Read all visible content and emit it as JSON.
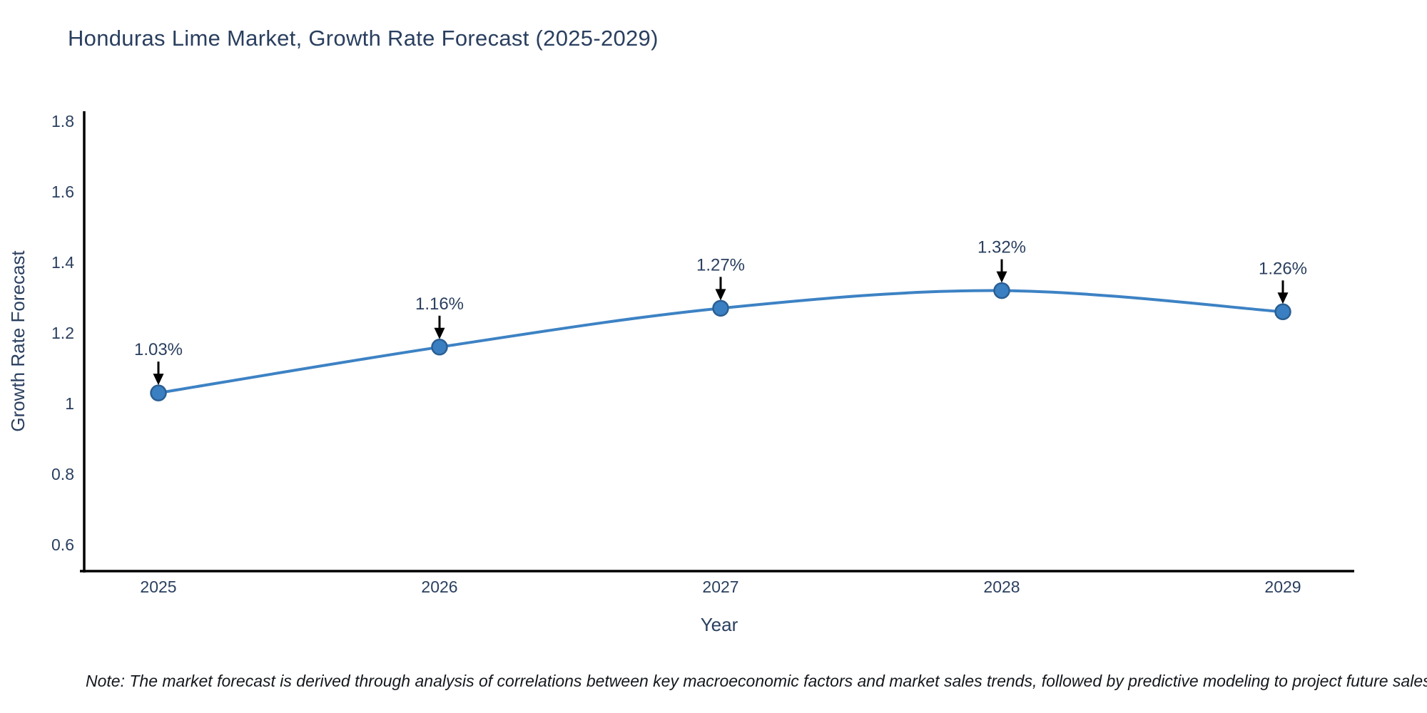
{
  "chart": {
    "title": "Honduras Lime Market, Growth Rate Forecast (2025-2029)",
    "note": "Note: The market forecast is derived through analysis of correlations between key macroeconomic factors and market sales trends, followed by predictive modeling to project future sales"
  },
  "chart_data": {
    "type": "line",
    "title": "Honduras Lime Market, Growth Rate Forecast (2025-2029)",
    "xlabel": "Year",
    "ylabel": "Growth Rate Forecast",
    "x": [
      2025,
      2026,
      2027,
      2028,
      2029
    ],
    "y": [
      1.03,
      1.16,
      1.27,
      1.32,
      1.26
    ],
    "point_labels": [
      "1.03%",
      "1.16%",
      "1.27%",
      "1.32%",
      "1.26%"
    ],
    "xtick_labels": [
      "2025",
      "2026",
      "2027",
      "2028",
      "2029"
    ],
    "yticks": [
      0.6,
      0.8,
      1.0,
      1.2,
      1.4,
      1.6,
      1.8
    ],
    "ytick_labels": [
      "0.6",
      "0.8",
      "1",
      "1.2",
      "1.4",
      "1.6",
      "1.8"
    ],
    "ylim": [
      0.52,
      1.82
    ],
    "grid": false,
    "legend": false,
    "line_shape": "spline",
    "colors": {
      "line": "#3d82c4",
      "marker_fill": "#3a7fc1",
      "marker_edge": "#2b5f93",
      "axis": "#000000",
      "text": "#2a3f5f",
      "arrow": "#000000"
    }
  }
}
